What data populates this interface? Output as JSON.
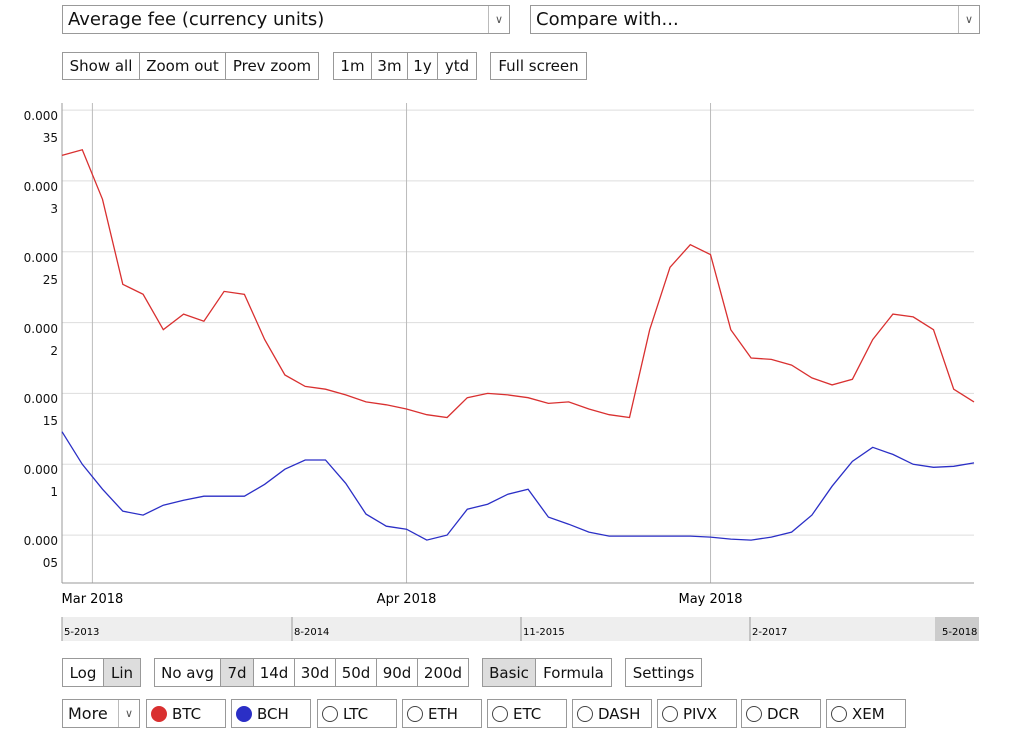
{
  "metric_select": "Average fee (currency units)",
  "compare_select": "Compare with...",
  "zoom_buttons": [
    "Show all",
    "Zoom out",
    "Prev zoom"
  ],
  "range_buttons": [
    "1m",
    "3m",
    "1y",
    "ytd"
  ],
  "fullscreen_button": "Full screen",
  "scale_buttons": [
    "Log",
    "Lin"
  ],
  "avg_buttons": [
    "No avg",
    "7d",
    "14d",
    "30d",
    "50d",
    "90d",
    "200d"
  ],
  "mode_buttons": [
    "Basic",
    "Formula"
  ],
  "settings_button": "Settings",
  "more_select": "More",
  "other_coins": [
    "LTC",
    "ETH",
    "ETC",
    "DASH",
    "PIVX",
    "DCR",
    "XEM"
  ],
  "navigator_labels": [
    "5-2013",
    "8-2014",
    "11-2015",
    "2-2017",
    "5-2018"
  ],
  "chart_data": {
    "type": "line",
    "x": [
      0,
      2,
      4,
      6,
      8,
      10,
      12,
      14,
      16,
      18,
      20,
      22,
      24,
      26,
      28,
      30,
      32,
      34,
      36,
      38,
      40,
      42,
      44,
      46,
      48,
      50,
      52,
      54,
      56,
      58,
      60,
      62,
      64,
      66,
      68,
      70,
      72,
      74,
      76,
      78,
      80,
      82,
      84,
      86,
      88,
      90
    ],
    "series": [
      {
        "name": "BTC",
        "color": "#d93030",
        "values": [
          0.000318,
          0.000322,
          0.000287,
          0.000227,
          0.00022,
          0.000195,
          0.000206,
          0.000201,
          0.000222,
          0.00022,
          0.000188,
          0.000163,
          0.000155,
          0.000153,
          0.000149,
          0.000144,
          0.000142,
          0.000139,
          0.000135,
          0.000133,
          0.000147,
          0.00015,
          0.000149,
          0.000147,
          0.000143,
          0.000144,
          0.000139,
          0.000135,
          0.000133,
          0.000195,
          0.000239,
          0.000255,
          0.000248,
          0.000195,
          0.000175,
          0.000174,
          0.00017,
          0.000161,
          0.000156,
          0.00016,
          0.000188,
          0.000206,
          0.000204,
          0.000195,
          0.000153,
          0.000144
        ]
      },
      {
        "name": "BCH",
        "color": "#2b2fc6",
        "values": [
          0.000123,
          0.0001,
          8.24e-05,
          6.69e-05,
          6.41e-05,
          7.11e-05,
          7.46e-05,
          7.75e-05,
          7.75e-05,
          7.75e-05,
          8.59e-05,
          9.65e-05,
          0.000103,
          0.000103,
          8.66e-05,
          6.48e-05,
          5.63e-05,
          5.42e-05,
          4.65e-05,
          5e-05,
          6.83e-05,
          7.18e-05,
          7.89e-05,
          8.24e-05,
          6.27e-05,
          5.77e-05,
          5.21e-05,
          4.93e-05,
          4.93e-05,
          4.93e-05,
          4.93e-05,
          4.93e-05,
          4.86e-05,
          4.72e-05,
          4.65e-05,
          4.86e-05,
          5.21e-05,
          6.41e-05,
          8.45e-05,
          0.000102,
          0.000112,
          0.000107,
          0.0001,
          9.79e-05,
          9.86e-05,
          0.000101
        ]
      }
    ],
    "xlim": [
      0,
      90
    ],
    "xticks": [
      {
        "value": 3,
        "label": "Mar 2018"
      },
      {
        "value": 34,
        "label": "Apr 2018"
      },
      {
        "value": 64,
        "label": "May 2018"
      }
    ],
    "ylim": [
      1.62e-05,
      0.000355
    ],
    "yticks": [
      5e-05,
      0.0001,
      0.00015,
      0.0002,
      0.00025,
      0.0003,
      0.00035
    ],
    "grid": true
  }
}
